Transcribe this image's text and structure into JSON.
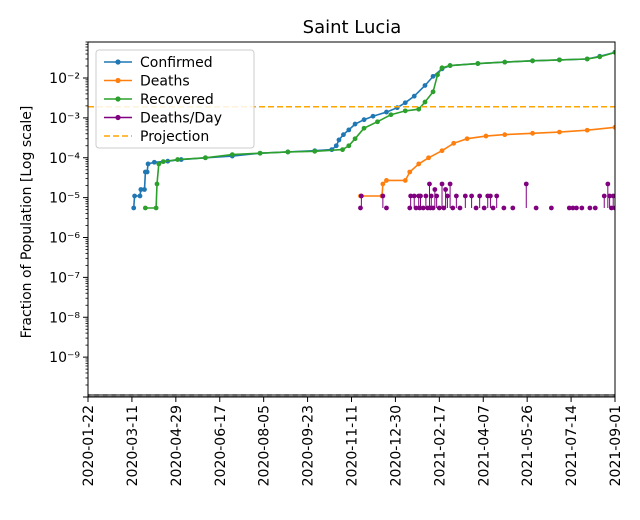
{
  "chart_data": {
    "type": "line",
    "title": "Saint Lucia",
    "ylabel": "Fraction of Population [Log scale]",
    "xlabel": "",
    "yscale": "log",
    "ylim": [
      1e-10,
      0.08
    ],
    "xlim": [
      "2020-01-22",
      "2021-09-01"
    ],
    "x_tick_labels": [
      "2020-01-22",
      "2020-03-11",
      "2020-04-29",
      "2020-06-17",
      "2020-08-05",
      "2020-09-23",
      "2020-11-11",
      "2020-12-30",
      "2021-02-17",
      "2021-04-07",
      "2021-05-26",
      "2021-07-14",
      "2021-09-01"
    ],
    "y_tick_labels": [
      "10⁻⁹",
      "10⁻⁸",
      "10⁻⁷",
      "10⁻⁶",
      "10⁻⁵",
      "10⁻⁴",
      "10⁻³",
      "10⁻²"
    ],
    "legend_position": "upper-left",
    "series": [
      {
        "name": "Confirmed",
        "color": "#1f77b4",
        "style": "line-markers",
        "points": [
          [
            "2020-03-13",
            5.5e-06
          ],
          [
            "2020-03-14",
            1.1e-05
          ],
          [
            "2020-03-20",
            1.1e-05
          ],
          [
            "2020-03-21",
            1.6e-05
          ],
          [
            "2020-03-25",
            1.6e-05
          ],
          [
            "2020-03-26",
            4.4e-05
          ],
          [
            "2020-03-28",
            4.4e-05
          ],
          [
            "2020-03-29",
            7e-05
          ],
          [
            "2020-04-05",
            7.7e-05
          ],
          [
            "2020-04-20",
            8.2e-05
          ],
          [
            "2020-05-05",
            9e-05
          ],
          [
            "2020-06-01",
            0.0001
          ],
          [
            "2020-07-01",
            0.00011
          ],
          [
            "2020-08-01",
            0.00013
          ],
          [
            "2020-09-01",
            0.00014
          ],
          [
            "2020-10-01",
            0.00015
          ],
          [
            "2020-10-20",
            0.00016
          ],
          [
            "2020-10-25",
            0.0002
          ],
          [
            "2020-10-28",
            0.00028
          ],
          [
            "2020-11-02",
            0.00038
          ],
          [
            "2020-11-08",
            0.0005
          ],
          [
            "2020-11-15",
            0.0007
          ],
          [
            "2020-11-25",
            0.0009
          ],
          [
            "2020-12-05",
            0.0011
          ],
          [
            "2020-12-20",
            0.0014
          ],
          [
            "2021-01-01",
            0.0018
          ],
          [
            "2021-01-10",
            0.0024
          ],
          [
            "2021-01-20",
            0.0035
          ],
          [
            "2021-02-01",
            0.0065
          ],
          [
            "2021-02-10",
            0.011
          ],
          [
            "2021-02-20",
            0.017
          ],
          [
            "2021-03-01",
            0.0205
          ],
          [
            "2021-04-01",
            0.023
          ],
          [
            "2021-05-01",
            0.025
          ],
          [
            "2021-06-01",
            0.027
          ],
          [
            "2021-07-01",
            0.0285
          ],
          [
            "2021-08-01",
            0.03
          ],
          [
            "2021-08-15",
            0.035
          ],
          [
            "2021-09-01",
            0.044
          ]
        ]
      },
      {
        "name": "Deaths",
        "color": "#ff7f0e",
        "style": "line-markers",
        "points": [
          [
            "2020-11-21",
            1.1e-05
          ],
          [
            "2020-12-15",
            1.1e-05
          ],
          [
            "2020-12-16",
            2.2e-05
          ],
          [
            "2020-12-20",
            2.7e-05
          ],
          [
            "2021-01-10",
            2.7e-05
          ],
          [
            "2021-01-15",
            4.4e-05
          ],
          [
            "2021-01-25",
            7e-05
          ],
          [
            "2021-02-05",
            0.0001
          ],
          [
            "2021-02-20",
            0.00015
          ],
          [
            "2021-03-05",
            0.00023
          ],
          [
            "2021-03-20",
            0.0003
          ],
          [
            "2021-04-10",
            0.00035
          ],
          [
            "2021-05-01",
            0.00038
          ],
          [
            "2021-06-01",
            0.00041
          ],
          [
            "2021-07-01",
            0.00044
          ],
          [
            "2021-08-01",
            0.00049
          ],
          [
            "2021-09-01",
            0.00058
          ]
        ]
      },
      {
        "name": "Recovered",
        "color": "#2ca02c",
        "style": "line-markers",
        "points": [
          [
            "2020-03-26",
            5.5e-06
          ],
          [
            "2020-04-07",
            5.5e-06
          ],
          [
            "2020-04-08",
            2.2e-05
          ],
          [
            "2020-04-10",
            7e-05
          ],
          [
            "2020-04-15",
            8e-05
          ],
          [
            "2020-05-01",
            9e-05
          ],
          [
            "2020-06-01",
            0.0001
          ],
          [
            "2020-07-01",
            0.00012
          ],
          [
            "2020-08-01",
            0.00013
          ],
          [
            "2020-09-01",
            0.00014
          ],
          [
            "2020-10-01",
            0.000145
          ],
          [
            "2020-11-01",
            0.00016
          ],
          [
            "2020-11-08",
            0.0002
          ],
          [
            "2020-11-15",
            0.0003
          ],
          [
            "2020-11-25",
            0.00055
          ],
          [
            "2020-12-10",
            0.0008
          ],
          [
            "2020-12-25",
            0.0012
          ],
          [
            "2021-01-10",
            0.0015
          ],
          [
            "2021-01-25",
            0.00165
          ],
          [
            "2021-02-01",
            0.0025
          ],
          [
            "2021-02-10",
            0.0045
          ],
          [
            "2021-02-15",
            0.012
          ],
          [
            "2021-02-20",
            0.018
          ],
          [
            "2021-03-01",
            0.0205
          ],
          [
            "2021-04-01",
            0.023
          ],
          [
            "2021-05-01",
            0.025
          ],
          [
            "2021-06-01",
            0.027
          ],
          [
            "2021-07-01",
            0.0285
          ],
          [
            "2021-08-01",
            0.03
          ],
          [
            "2021-08-15",
            0.034
          ],
          [
            "2021-09-01",
            0.044
          ]
        ]
      },
      {
        "name": "Deaths/Day",
        "color": "#800080",
        "style": "stem-markers",
        "points": [
          [
            "2020-11-21",
            5.5e-06
          ],
          [
            "2020-11-22",
            1.1e-05
          ],
          [
            "2020-12-16",
            1.1e-05
          ],
          [
            "2020-12-20",
            5.5e-06
          ],
          [
            "2021-01-15",
            5.5e-06
          ],
          [
            "2021-01-16",
            1.1e-05
          ],
          [
            "2021-01-20",
            1.1e-05
          ],
          [
            "2021-01-22",
            5.5e-06
          ],
          [
            "2021-01-25",
            1.1e-05
          ],
          [
            "2021-01-26",
            5.5e-06
          ],
          [
            "2021-01-27",
            1.1e-05
          ],
          [
            "2021-01-30",
            5.5e-06
          ],
          [
            "2021-02-02",
            1.1e-05
          ],
          [
            "2021-02-04",
            5.5e-06
          ],
          [
            "2021-02-06",
            2.2e-05
          ],
          [
            "2021-02-07",
            5.5e-06
          ],
          [
            "2021-02-08",
            1.1e-05
          ],
          [
            "2021-02-10",
            5.5e-06
          ],
          [
            "2021-02-12",
            1.6e-05
          ],
          [
            "2021-02-14",
            1.1e-05
          ],
          [
            "2021-02-17",
            5.5e-06
          ],
          [
            "2021-02-20",
            2.2e-05
          ],
          [
            "2021-02-22",
            5.5e-06
          ],
          [
            "2021-02-24",
            1.6e-05
          ],
          [
            "2021-02-26",
            1.1e-05
          ],
          [
            "2021-03-01",
            2.2e-05
          ],
          [
            "2021-03-04",
            5.5e-06
          ],
          [
            "2021-03-08",
            1.1e-05
          ],
          [
            "2021-03-12",
            5.5e-06
          ],
          [
            "2021-03-18",
            1.1e-05
          ],
          [
            "2021-03-25",
            1.1e-05
          ],
          [
            "2021-03-30",
            5.5e-06
          ],
          [
            "2021-04-03",
            1.1e-05
          ],
          [
            "2021-04-08",
            5.5e-06
          ],
          [
            "2021-04-12",
            1.1e-05
          ],
          [
            "2021-04-15",
            1.1e-05
          ],
          [
            "2021-04-18",
            5.5e-06
          ],
          [
            "2021-04-22",
            1.1e-05
          ],
          [
            "2021-04-30",
            5.5e-06
          ],
          [
            "2021-05-10",
            5.5e-06
          ],
          [
            "2021-05-25",
            2.2e-05
          ],
          [
            "2021-06-05",
            5.5e-06
          ],
          [
            "2021-06-22",
            5.5e-06
          ],
          [
            "2021-07-12",
            5.5e-06
          ],
          [
            "2021-07-16",
            5.5e-06
          ],
          [
            "2021-07-20",
            5.5e-06
          ],
          [
            "2021-07-26",
            5.5e-06
          ],
          [
            "2021-08-04",
            5.5e-06
          ],
          [
            "2021-08-10",
            5.5e-06
          ],
          [
            "2021-08-20",
            1.1e-05
          ],
          [
            "2021-08-24",
            2.2e-05
          ],
          [
            "2021-08-26",
            1.1e-05
          ],
          [
            "2021-08-28",
            5.5e-06
          ],
          [
            "2021-08-30",
            1.1e-05
          ],
          [
            "2021-09-01",
            5.5e-06
          ]
        ]
      },
      {
        "name": "Projection",
        "color": "#ffa500",
        "style": "dashed-horizontal",
        "points": [
          [
            "2020-01-22",
            0.0019
          ],
          [
            "2021-09-01",
            0.0019
          ]
        ]
      }
    ]
  }
}
